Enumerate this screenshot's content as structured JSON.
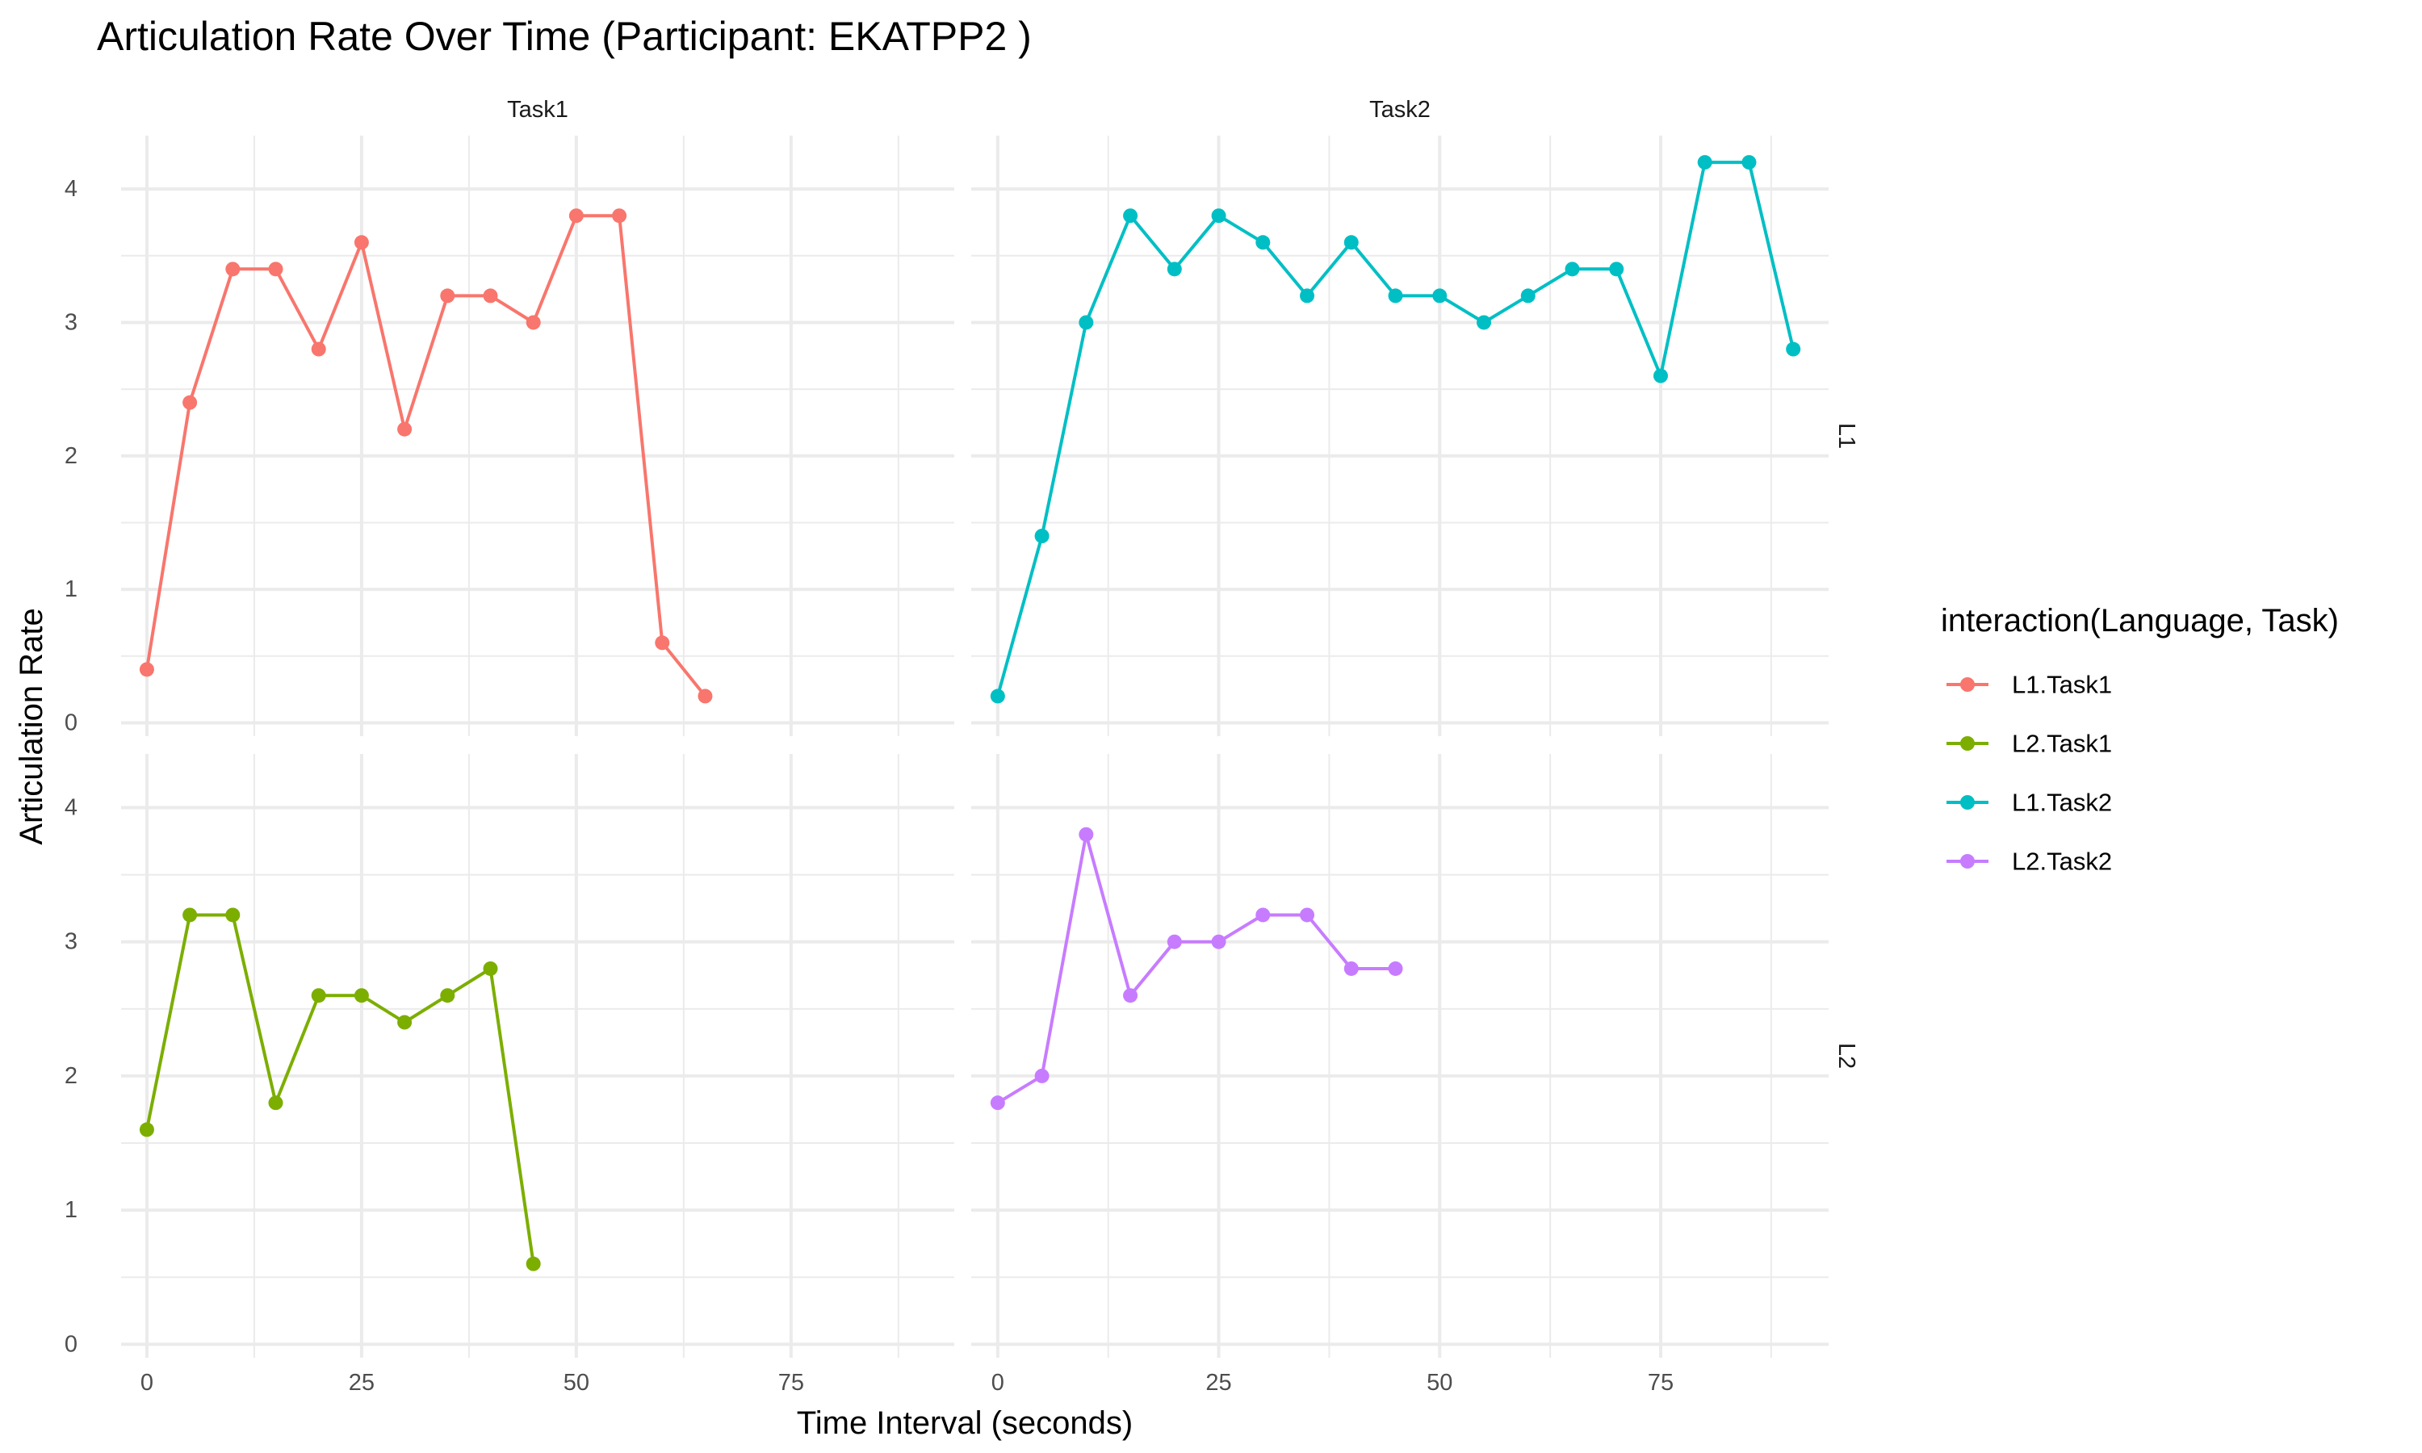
{
  "chart_data": {
    "type": "line",
    "title": "Articulation Rate Over Time (Participant: EKATPP2 )",
    "xlabel": "Time Interval (seconds)",
    "ylabel": "Articulation Rate",
    "xlim": [
      -3,
      94
    ],
    "ylim": [
      -0.1,
      4.4
    ],
    "x_ticks": [
      0,
      25,
      50,
      75
    ],
    "y_ticks": [
      0,
      1,
      2,
      3,
      4
    ],
    "grid": true,
    "legend_position": "right",
    "legend_title": "interaction(Language, Task)",
    "facet_columns": [
      "Task1",
      "Task2"
    ],
    "facet_rows": [
      "L1",
      "L2"
    ],
    "series": [
      {
        "name": "L1.Task1",
        "color": "#F8766D",
        "x": [
          0,
          5,
          10,
          15,
          20,
          25,
          30,
          35,
          40,
          45,
          50,
          55,
          60,
          65
        ],
        "values": [
          0.4,
          2.4,
          3.4,
          3.4,
          2.8,
          3.6,
          2.2,
          3.2,
          3.2,
          3.0,
          3.8,
          3.8,
          0.6,
          0.2
        ]
      },
      {
        "name": "L2.Task1",
        "color": "#7CAE00",
        "x": [
          0,
          5,
          10,
          15,
          20,
          25,
          30,
          35,
          40,
          45
        ],
        "values": [
          1.6,
          3.2,
          3.2,
          1.8,
          2.6,
          2.6,
          2.4,
          2.6,
          2.8,
          0.6
        ]
      },
      {
        "name": "L1.Task2",
        "color": "#00BFC4",
        "x": [
          0,
          5,
          10,
          15,
          20,
          25,
          30,
          35,
          40,
          45,
          50,
          55,
          60,
          65,
          70,
          75,
          80,
          85,
          90
        ],
        "values": [
          0.2,
          1.4,
          3.0,
          3.8,
          3.4,
          3.8,
          3.6,
          3.2,
          3.6,
          3.2,
          3.2,
          3.0,
          3.2,
          3.4,
          3.4,
          2.6,
          4.2,
          4.2,
          2.8
        ]
      },
      {
        "name": "L2.Task2",
        "color": "#C77CFF",
        "x": [
          0,
          5,
          10,
          15,
          20,
          25,
          30,
          35,
          40,
          45
        ],
        "values": [
          1.8,
          2.0,
          3.8,
          2.6,
          3.0,
          3.0,
          3.2,
          3.2,
          2.8,
          2.8
        ]
      }
    ]
  }
}
